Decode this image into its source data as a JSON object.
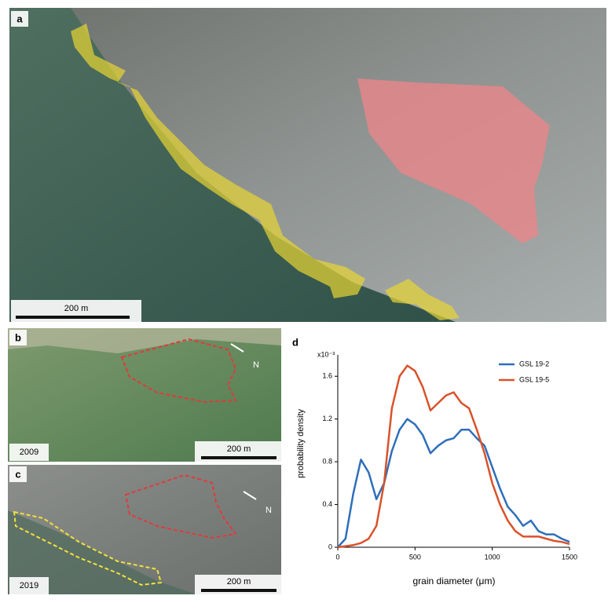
{
  "panels": {
    "a": {
      "label": "a",
      "scale_bar": "200 m"
    },
    "b": {
      "label": "b",
      "year": "2009",
      "north": "N",
      "scale_bar": "200 m"
    },
    "c": {
      "label": "c",
      "year": "2019",
      "north": "N",
      "scale_bar": "200 m"
    }
  },
  "chart_data": {
    "type": "line",
    "label": "d",
    "multiplier": "x10⁻³",
    "x_label": "grain diameter (μm)",
    "y_label": "probability density",
    "x": [
      0,
      50,
      100,
      150,
      200,
      250,
      300,
      350,
      400,
      450,
      500,
      550,
      600,
      650,
      700,
      750,
      800,
      850,
      900,
      950,
      1000,
      1050,
      1100,
      1150,
      1200,
      1250,
      1300,
      1350,
      1400,
      1450,
      1500
    ],
    "series": [
      {
        "name": "GSL 19-2",
        "color": "#2e6fba",
        "values": [
          0,
          0.08,
          0.5,
          0.82,
          0.7,
          0.45,
          0.6,
          0.9,
          1.1,
          1.2,
          1.15,
          1.05,
          0.88,
          0.95,
          1.0,
          1.02,
          1.1,
          1.1,
          1.02,
          0.95,
          0.75,
          0.55,
          0.38,
          0.3,
          0.2,
          0.25,
          0.15,
          0.12,
          0.12,
          0.08,
          0.05
        ]
      },
      {
        "name": "GSL 19-5",
        "color": "#d9522b",
        "values": [
          0,
          0.01,
          0.02,
          0.04,
          0.08,
          0.2,
          0.6,
          1.3,
          1.6,
          1.7,
          1.65,
          1.5,
          1.28,
          1.35,
          1.42,
          1.45,
          1.35,
          1.3,
          1.1,
          0.88,
          0.6,
          0.4,
          0.25,
          0.15,
          0.1,
          0.1,
          0.1,
          0.08,
          0.06,
          0.05,
          0.03
        ]
      }
    ],
    "xlim": [
      0,
      1500
    ],
    "ylim": [
      0,
      1.8
    ],
    "xticks": [
      0,
      500,
      1000,
      1500
    ],
    "yticks": [
      0,
      0.4,
      0.8,
      1.2,
      1.6
    ],
    "legend": "upper-right"
  }
}
